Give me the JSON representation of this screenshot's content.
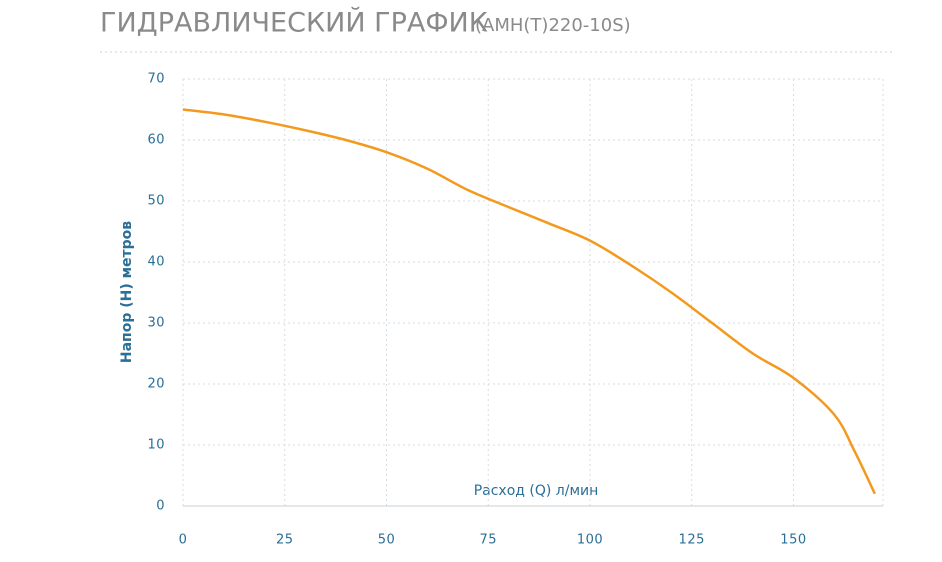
{
  "chart_data": {
    "type": "line",
    "title": "ГИДРАВЛИЧЕСКИЙ ГРАФИК",
    "subtitle": "(АМН(Т)220-10S)",
    "x_label": "Расход (Q) л/мин",
    "y_label": "Напор (Н) метров",
    "x": [
      0,
      10,
      20,
      30,
      40,
      50,
      60,
      70,
      80,
      90,
      100,
      110,
      120,
      130,
      140,
      150,
      160,
      165,
      170
    ],
    "series": [
      {
        "name": "АМН(Т)220-10S",
        "color": "#f39a1e",
        "values": [
          65,
          64.2,
          63,
          61.6,
          60,
          58,
          55.3,
          51.8,
          49,
          46.3,
          43.5,
          39.5,
          35,
          30,
          25,
          21,
          15,
          9,
          2
        ]
      }
    ],
    "xlim": [
      0,
      172
    ],
    "xticks": [
      0,
      25,
      50,
      75,
      100,
      125,
      150
    ],
    "ylim": [
      0,
      70
    ],
    "yticks": [
      0,
      10,
      20,
      30,
      40,
      50,
      60,
      70
    ],
    "grid": true
  }
}
